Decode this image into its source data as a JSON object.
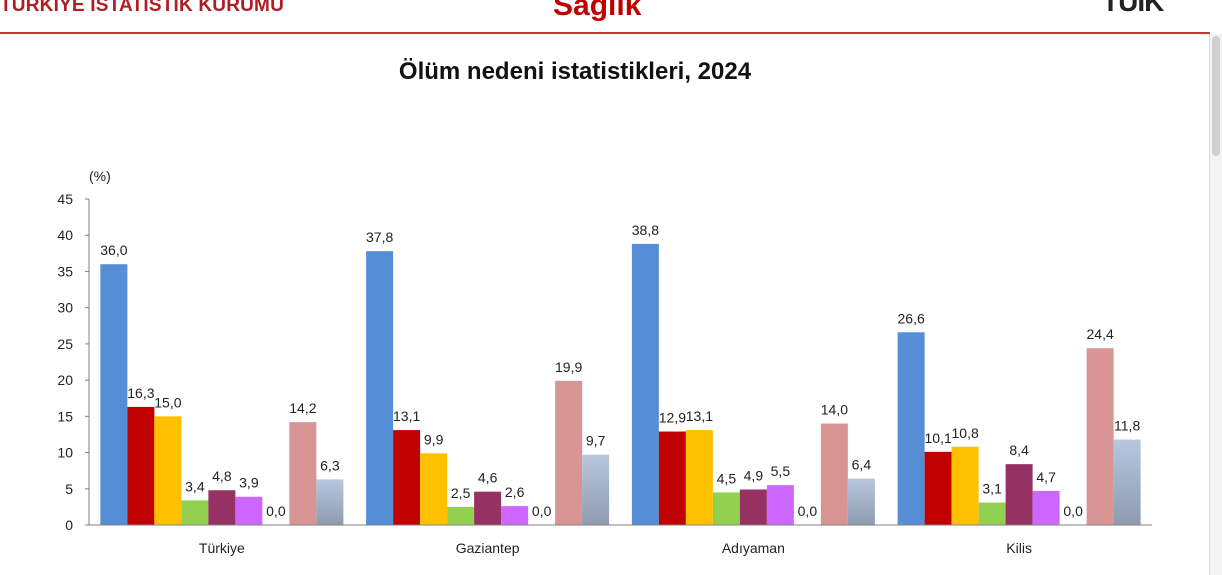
{
  "header": {
    "org_name": "TÜRKİYE İSTATİSTİK KURUMU",
    "section_title": "Sağlık",
    "logo_text": "TÜİK",
    "rule_color": "#c0392b"
  },
  "chart_data": {
    "type": "bar",
    "title": "Ölüm nedeni istatistikleri, 2024",
    "ylabel": "(%)",
    "xlabel": "",
    "ylim": [
      0,
      45
    ],
    "yticks": [
      "0",
      "5",
      "10",
      "15",
      "20",
      "25",
      "30",
      "35",
      "40",
      "45"
    ],
    "grid": false,
    "legend": "none",
    "categories": [
      "Türkiye",
      "Gaziantep",
      "Adıyaman",
      "Kilis"
    ],
    "series": [
      {
        "color": "#558ed5",
        "values": [
          36.0,
          37.8,
          38.8,
          26.6
        ],
        "labels": [
          "36,0",
          "37,8",
          "38,8",
          "26,6"
        ]
      },
      {
        "color": "#c00000",
        "values": [
          16.3,
          13.1,
          12.9,
          10.1
        ],
        "labels": [
          "16,3",
          "13,1",
          "12,9",
          "10,1"
        ]
      },
      {
        "color": "#ffc000",
        "values": [
          15.0,
          9.9,
          13.1,
          10.8
        ],
        "labels": [
          "15,0",
          "9,9",
          "13,1",
          "10,8"
        ]
      },
      {
        "color": "#92d050",
        "values": [
          3.4,
          2.5,
          4.5,
          3.1
        ],
        "labels": [
          "3,4",
          "2,5",
          "4,5",
          "3,1"
        ]
      },
      {
        "color": "#953163",
        "values": [
          4.8,
          4.6,
          4.9,
          8.4
        ],
        "labels": [
          "4,8",
          "4,6",
          "4,9",
          "8,4"
        ]
      },
      {
        "color": "#cc66ff",
        "values": [
          3.9,
          2.6,
          5.5,
          4.7
        ],
        "labels": [
          "3,9",
          "2,6",
          "5,5",
          "4,7"
        ]
      },
      {
        "color": "#ff0000",
        "values": [
          0.0,
          0.0,
          0.0,
          0.0
        ],
        "labels": [
          "0,0",
          "0,0",
          "0,0",
          "0,0"
        ]
      },
      {
        "color": "#d99594",
        "values": [
          14.2,
          19.9,
          14.0,
          24.4
        ],
        "labels": [
          "14,2",
          "19,9",
          "14,0",
          "24,4"
        ]
      },
      {
        "color": "#b8c7de",
        "gradient_bottom": "#8e9bb0",
        "values": [
          6.3,
          9.7,
          6.4,
          11.8
        ],
        "labels": [
          "6,3",
          "9,7",
          "6,4",
          "11,8"
        ]
      }
    ]
  }
}
